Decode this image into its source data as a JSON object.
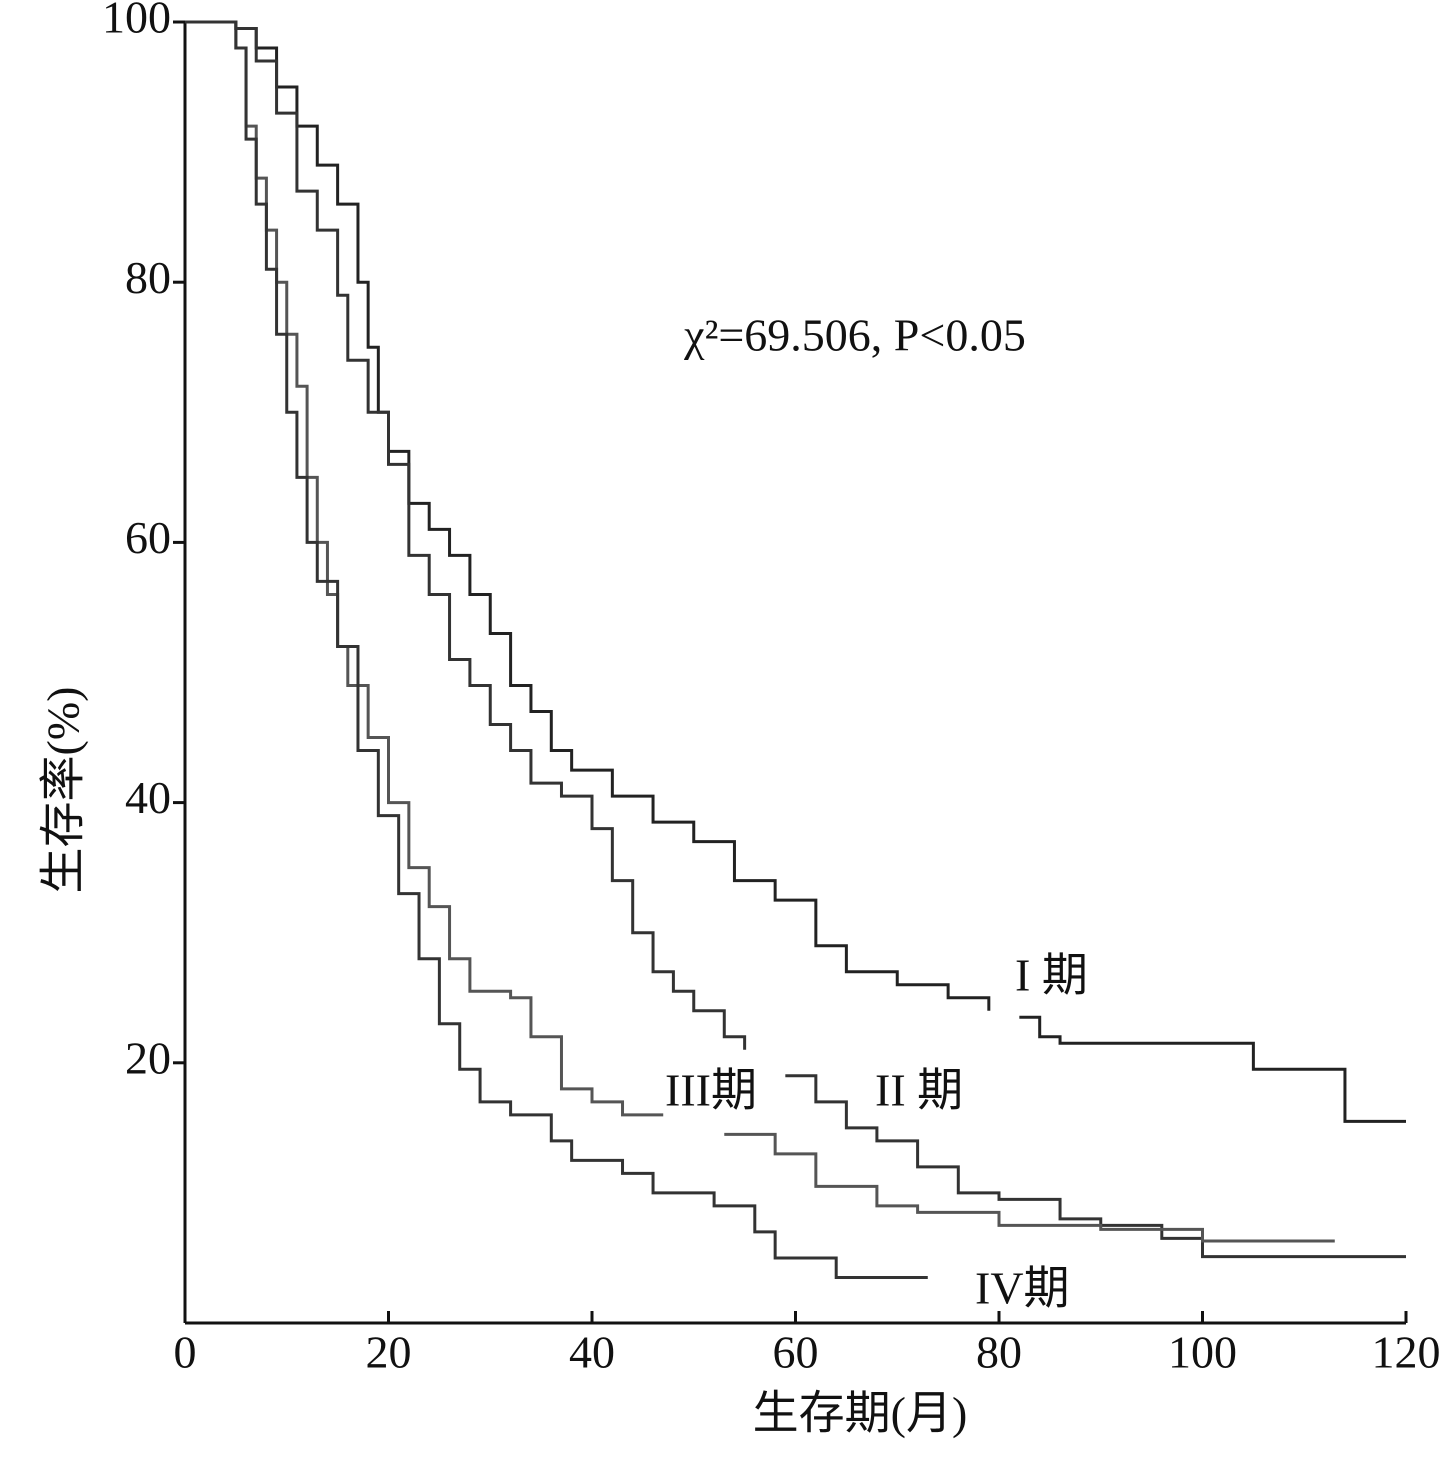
{
  "chart_data": {
    "type": "step",
    "annotation": "χ²=69.506, P<0.05",
    "x_label": "生存期(月)",
    "y_label": "生存率(%)",
    "xlim": [
      0,
      120
    ],
    "xticks": [
      0,
      20,
      40,
      60,
      80,
      100,
      120
    ],
    "ylim": [
      0,
      100
    ],
    "yticks": [
      20,
      40,
      60,
      80,
      100
    ],
    "series": [
      {
        "name": "I 期",
        "color": "#222222",
        "x": [
          0,
          5,
          7,
          9,
          11,
          13,
          15,
          17,
          18,
          19,
          20,
          22,
          24,
          26,
          28,
          30,
          32,
          34,
          36,
          38,
          42,
          46,
          50,
          54,
          58,
          62,
          65,
          70,
          75,
          79,
          null,
          82,
          84,
          86,
          95,
          105,
          114,
          120
        ],
        "values": [
          100,
          99.5,
          98,
          95,
          92,
          89,
          86,
          80,
          75,
          70,
          67,
          63,
          61,
          59,
          56,
          53,
          49,
          47,
          44,
          42.5,
          40.5,
          38.5,
          37,
          34,
          32.5,
          29,
          27,
          26,
          25,
          24,
          null,
          23.5,
          22,
          21.5,
          21.5,
          19.5,
          15.5,
          15.5
        ]
      },
      {
        "name": "II 期",
        "color": "#333333",
        "x": [
          0,
          5,
          7,
          9,
          11,
          13,
          15,
          16,
          18,
          20,
          22,
          24,
          26,
          28,
          30,
          32,
          34,
          37,
          40,
          42,
          44,
          46,
          48,
          50,
          53,
          55,
          null,
          59,
          62,
          65,
          68,
          72,
          76,
          80,
          86,
          90,
          96,
          100,
          120
        ],
        "values": [
          100,
          99.5,
          97,
          93,
          87,
          84,
          79,
          74,
          70,
          66,
          59,
          56,
          51,
          49,
          46,
          44,
          41.5,
          40.5,
          38,
          34,
          30,
          27,
          25.5,
          24,
          22,
          21,
          null,
          19,
          17,
          15,
          14,
          12,
          10,
          9.5,
          8,
          7.5,
          6.5,
          5.1,
          5.1
        ]
      },
      {
        "name": "III期",
        "color": "#555555",
        "x": [
          0,
          5,
          6,
          7,
          8,
          9,
          10,
          11,
          12,
          13,
          14,
          15,
          16,
          18,
          20,
          22,
          24,
          26,
          28,
          32,
          34,
          37,
          40,
          43,
          47,
          null,
          53,
          58,
          62,
          68,
          72,
          80,
          90,
          100,
          113
        ],
        "values": [
          100,
          98,
          92,
          88,
          84,
          80,
          76,
          72,
          65,
          60,
          56,
          52,
          49,
          45,
          40,
          35,
          32,
          28,
          25.5,
          25,
          22,
          18,
          17,
          16,
          16,
          null,
          14.5,
          13,
          10.5,
          9,
          8.5,
          7.5,
          7.2,
          6.3,
          6.3
        ]
      },
      {
        "name": "IV期",
        "color": "#333333",
        "x": [
          0,
          5,
          6,
          7,
          8,
          9,
          10,
          11,
          12,
          13,
          15,
          17,
          19,
          21,
          23,
          25,
          27,
          29,
          32,
          36,
          38,
          43,
          46,
          52,
          56,
          58,
          64,
          73
        ],
        "values": [
          100,
          98,
          91,
          86,
          81,
          76,
          70,
          65,
          60,
          57,
          52,
          44,
          39,
          33,
          28,
          23,
          19.5,
          17,
          16,
          14,
          12.5,
          11.5,
          10,
          9,
          7,
          5,
          3.5,
          3.5
        ]
      }
    ]
  }
}
